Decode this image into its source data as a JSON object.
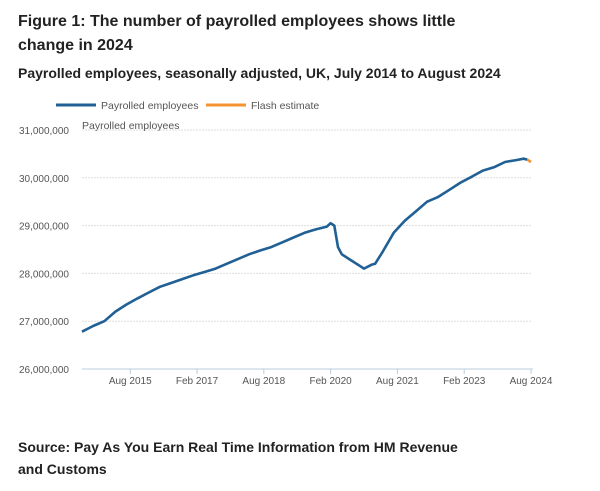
{
  "title": "Figure 1: The number of payrolled employees shows little change in 2024",
  "subtitle": "Payrolled employees, seasonally adjusted, UK, July 2014 to August 2024",
  "source": "Source: Pay As You Earn Real Time Information from HM Revenue and Customs",
  "chart_data": {
    "type": "line",
    "title": "Figure 1: The number of payrolled employees shows little change in 2024",
    "ylabel": "Payrolled employees",
    "ylim": [
      26000000,
      31000000
    ],
    "yticks": [
      26000000,
      27000000,
      28000000,
      29000000,
      30000000,
      31000000
    ],
    "ytick_labels": [
      "26,000,000",
      "27,000,000",
      "28,000,000",
      "29,000,000",
      "30,000,000",
      "31,000,000"
    ],
    "xlim": [
      "2014-07",
      "2024-08"
    ],
    "xticks": [
      "2015-08",
      "2017-02",
      "2018-08",
      "2020-02",
      "2021-08",
      "2023-02",
      "2024-08"
    ],
    "xtick_labels": [
      "Aug 2015",
      "Feb 2017",
      "Aug 2018",
      "Feb 2020",
      "Aug 2021",
      "Feb 2023",
      "Aug 2024"
    ],
    "grid": "horizontal",
    "legend_placement": "top",
    "series": [
      {
        "name": "Payrolled employees",
        "color": "#206095",
        "x": [
          "2014-07",
          "2014-10",
          "2015-01",
          "2015-04",
          "2015-07",
          "2015-10",
          "2016-01",
          "2016-04",
          "2016-07",
          "2016-10",
          "2017-01",
          "2017-04",
          "2017-07",
          "2017-10",
          "2018-01",
          "2018-04",
          "2018-07",
          "2018-10",
          "2019-01",
          "2019-04",
          "2019-07",
          "2019-10",
          "2020-01",
          "2020-02",
          "2020-03",
          "2020-04",
          "2020-05",
          "2020-07",
          "2020-10",
          "2020-11",
          "2021-01",
          "2021-02",
          "2021-04",
          "2021-07",
          "2021-10",
          "2022-01",
          "2022-04",
          "2022-07",
          "2022-10",
          "2023-01",
          "2023-04",
          "2023-07",
          "2023-10",
          "2024-01",
          "2024-04",
          "2024-06",
          "2024-07"
        ],
        "values": [
          26780000,
          26900000,
          27000000,
          27200000,
          27350000,
          27480000,
          27600000,
          27720000,
          27800000,
          27880000,
          27960000,
          28030000,
          28100000,
          28200000,
          28300000,
          28400000,
          28480000,
          28550000,
          28650000,
          28750000,
          28850000,
          28920000,
          28980000,
          29050000,
          29000000,
          28550000,
          28400000,
          28300000,
          28150000,
          28100000,
          28180000,
          28200000,
          28450000,
          28850000,
          29100000,
          29300000,
          29500000,
          29600000,
          29750000,
          29900000,
          30020000,
          30150000,
          30220000,
          30330000,
          30370000,
          30400000,
          30380000
        ]
      },
      {
        "name": "Flash estimate",
        "color": "#f39431",
        "x": [
          "2024-07",
          "2024-08"
        ],
        "values": [
          30380000,
          30330000
        ]
      }
    ]
  }
}
